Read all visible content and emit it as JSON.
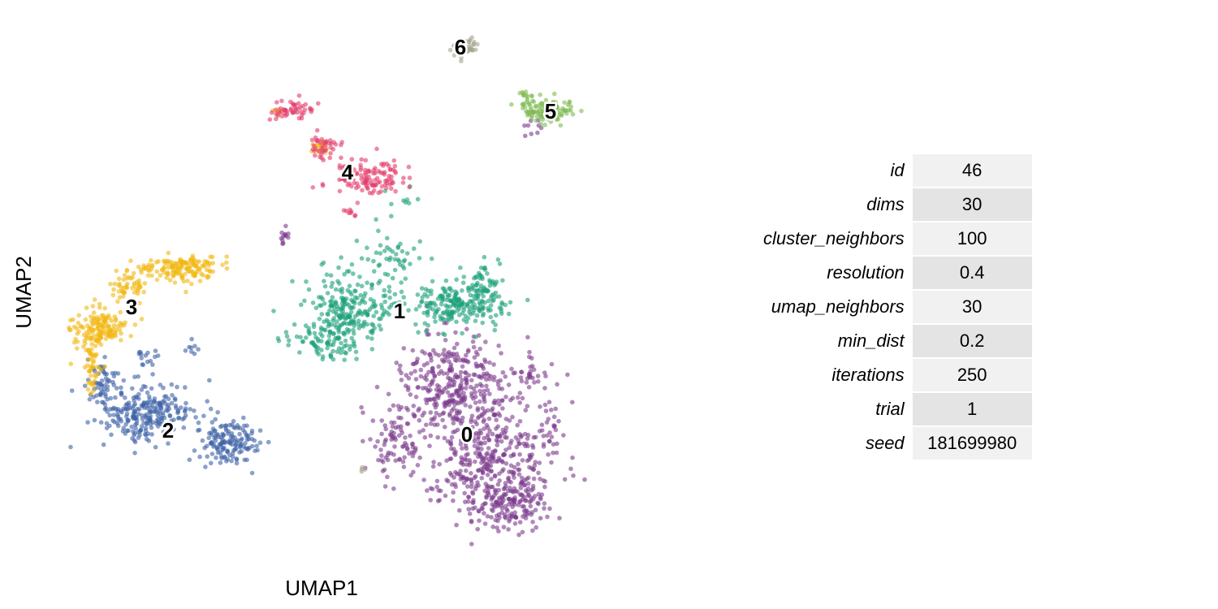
{
  "chart_data": {
    "type": "scatter",
    "title": "",
    "xlabel": "UMAP1",
    "ylabel": "UMAP2",
    "grid": false,
    "legend": "none",
    "clusters": [
      {
        "label": "0",
        "color": "#7b3a8c",
        "center": [
          575,
          535
        ],
        "blobs": [
          [
            560,
            470,
            60,
            50,
            300
          ],
          [
            600,
            560,
            80,
            70,
            420
          ],
          [
            625,
            620,
            40,
            30,
            140
          ],
          [
            490,
            540,
            35,
            45,
            80
          ],
          [
            680,
            530,
            10,
            30,
            20
          ],
          [
            650,
            460,
            25,
            20,
            30
          ],
          [
            350,
            295,
            10,
            15,
            12
          ],
          [
            660,
            155,
            15,
            10,
            10
          ]
        ]
      },
      {
        "label": "1",
        "color": "#1aa07a",
        "center": [
          492,
          383
        ],
        "blobs": [
          [
            430,
            380,
            45,
            35,
            220
          ],
          [
            560,
            375,
            55,
            25,
            200
          ],
          [
            595,
            355,
            20,
            30,
            60
          ],
          [
            395,
            420,
            40,
            20,
            80
          ],
          [
            480,
            320,
            45,
            30,
            50
          ],
          [
            490,
            250,
            20,
            20,
            10
          ]
        ]
      },
      {
        "label": "2",
        "color": "#3e63a6",
        "center": [
          207,
          530
        ],
        "blobs": [
          [
            180,
            510,
            50,
            35,
            250
          ],
          [
            280,
            545,
            35,
            25,
            150
          ],
          [
            125,
            470,
            15,
            30,
            50
          ],
          [
            180,
            440,
            15,
            10,
            15
          ],
          [
            235,
            430,
            8,
            10,
            8
          ]
        ]
      },
      {
        "label": "3",
        "color": "#f2b710",
        "center": [
          162,
          378
        ],
        "blobs": [
          [
            120,
            405,
            30,
            22,
            150
          ],
          [
            220,
            330,
            45,
            15,
            150
          ],
          [
            160,
            355,
            20,
            20,
            50
          ],
          [
            115,
            455,
            10,
            25,
            40
          ],
          [
            340,
            140,
            8,
            8,
            6
          ],
          [
            395,
            180,
            10,
            8,
            15
          ]
        ]
      },
      {
        "label": "4",
        "color": "#e23c6a",
        "center": [
          428,
          212
        ],
        "blobs": [
          [
            450,
            220,
            40,
            22,
            120
          ],
          [
            400,
            180,
            15,
            15,
            40
          ],
          [
            360,
            135,
            25,
            10,
            50
          ],
          [
            430,
            260,
            10,
            10,
            8
          ]
        ]
      },
      {
        "label": "5",
        "color": "#7fba51",
        "center": [
          678,
          137
        ],
        "blobs": [
          [
            677,
            135,
            30,
            13,
            120
          ],
          [
            645,
            115,
            8,
            5,
            8
          ]
        ]
      },
      {
        "label": "6",
        "color": "#a5a58f",
        "center": [
          567,
          58
        ],
        "blobs": [
          [
            572,
            57,
            18,
            10,
            40
          ],
          [
            447,
            577,
            4,
            4,
            4
          ]
        ]
      }
    ]
  },
  "params": [
    {
      "name": "id",
      "value": "46"
    },
    {
      "name": "dims",
      "value": "30"
    },
    {
      "name": "cluster_neighbors",
      "value": "100"
    },
    {
      "name": "resolution",
      "value": "0.4"
    },
    {
      "name": "umap_neighbors",
      "value": "30"
    },
    {
      "name": "min_dist",
      "value": "0.2"
    },
    {
      "name": "iterations",
      "value": "250"
    },
    {
      "name": "trial",
      "value": "1"
    },
    {
      "name": "seed",
      "value": "181699980"
    }
  ]
}
